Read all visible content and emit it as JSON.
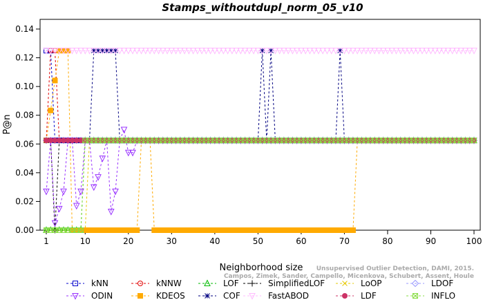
{
  "chart_data": {
    "type": "line",
    "title": "Stamps_withoutdupl_norm_05_v10",
    "xlabel": "Neighborhood size",
    "ylabel": "P@n",
    "xlim": [
      1,
      100
    ],
    "ylim": [
      0,
      0.14
    ],
    "x_ticks": [
      1,
      10,
      20,
      30,
      40,
      50,
      60,
      70,
      80,
      90,
      100
    ],
    "y_ticks": [
      "0.00",
      "0.02",
      "0.04",
      "0.06",
      "0.08",
      "0.10",
      "0.12",
      "0.14"
    ],
    "legend_position": "bottom",
    "series": [
      {
        "name": "kNN",
        "color": "#0000cc",
        "marker": "square",
        "points": [
          [
            1,
            0.125
          ],
          [
            2,
            0.125
          ],
          [
            3,
            0.0625
          ],
          [
            100,
            0.0625
          ]
        ]
      },
      {
        "name": "kNNW",
        "color": "#e00000",
        "marker": "circle",
        "points": [
          [
            1,
            0.0625
          ],
          [
            2,
            0.125
          ],
          [
            3,
            0.125
          ],
          [
            4,
            0.0625
          ],
          [
            100,
            0.0625
          ]
        ]
      },
      {
        "name": "LOF",
        "color": "#00bb00",
        "marker": "triangle-up",
        "points": [
          [
            1,
            0
          ],
          [
            8,
            0
          ],
          [
            9,
            0
          ],
          [
            10,
            0.0625
          ],
          [
            100,
            0.0625
          ]
        ]
      },
      {
        "name": "SimplifiedLOF",
        "color": "#000000",
        "marker": "plus",
        "points": [
          [
            1,
            0.0625
          ],
          [
            2,
            0.0625
          ],
          [
            3,
            0
          ],
          [
            4,
            0.0625
          ],
          [
            100,
            0.0625
          ]
        ]
      },
      {
        "name": "LoOP",
        "color": "#e6c800",
        "marker": "x",
        "points": [
          [
            1,
            0
          ],
          [
            10,
            0
          ],
          [
            11,
            0.0625
          ],
          [
            100,
            0.0625
          ]
        ]
      },
      {
        "name": "LDOF",
        "color": "#9999ff",
        "marker": "diamond",
        "points": [
          [
            1,
            0.0625
          ],
          [
            100,
            0.0625
          ]
        ]
      },
      {
        "name": "ODIN",
        "color": "#9933ff",
        "marker": "triangle-down",
        "points": [
          [
            1,
            0.027
          ],
          [
            2,
            0.0625
          ],
          [
            3,
            0.005
          ],
          [
            4,
            0.015
          ],
          [
            5,
            0.027
          ],
          [
            6,
            0.0625
          ],
          [
            7,
            0.0625
          ],
          [
            8,
            0.017
          ],
          [
            9,
            0.027
          ],
          [
            10,
            0.0625
          ],
          [
            11,
            0.0625
          ],
          [
            12,
            0.03
          ],
          [
            13,
            0.037
          ],
          [
            14,
            0.05
          ],
          [
            15,
            0.0625
          ],
          [
            16,
            0.013
          ],
          [
            17,
            0.027
          ],
          [
            18,
            0.0625
          ],
          [
            19,
            0.07
          ],
          [
            20,
            0.054
          ],
          [
            21,
            0.054
          ],
          [
            22,
            0.0625
          ],
          [
            100,
            0.0625
          ]
        ]
      },
      {
        "name": "KDEOS",
        "color": "#ffaa00",
        "marker": "square-filled",
        "points": [
          [
            1,
            0.0625
          ],
          [
            4,
            0.125
          ],
          [
            5,
            0.125
          ],
          [
            6,
            0.125
          ],
          [
            7,
            0
          ],
          [
            20,
            0
          ],
          [
            21,
            0
          ],
          [
            22,
            0
          ],
          [
            23,
            0.0625
          ],
          [
            24,
            0.0625
          ],
          [
            25,
            0.0625
          ],
          [
            26,
            0
          ],
          [
            70,
            0
          ],
          [
            71,
            0
          ],
          [
            72,
            0
          ],
          [
            73,
            0.0625
          ],
          [
            100,
            0.0625
          ]
        ]
      },
      {
        "name": "COF",
        "color": "#000080",
        "marker": "star",
        "points": [
          [
            1,
            0.0625
          ],
          [
            11,
            0.0625
          ],
          [
            12,
            0.125
          ],
          [
            13,
            0.125
          ],
          [
            14,
            0.125
          ],
          [
            15,
            0.125
          ],
          [
            16,
            0.125
          ],
          [
            17,
            0.125
          ],
          [
            18,
            0.0625
          ],
          [
            50,
            0.0625
          ],
          [
            51,
            0.125
          ],
          [
            52,
            0.0625
          ],
          [
            53,
            0.125
          ],
          [
            54,
            0.0625
          ],
          [
            68,
            0.0625
          ],
          [
            69,
            0.125
          ],
          [
            70,
            0.0625
          ],
          [
            100,
            0.0625
          ]
        ]
      },
      {
        "name": "FastABOD",
        "color": "#ffbbff",
        "marker": "triangle-down",
        "points": [
          [
            1,
            0.125
          ],
          [
            100,
            0.125
          ]
        ]
      },
      {
        "name": "LDF",
        "color": "#cc3366",
        "marker": "circle-filled",
        "points": [
          [
            1,
            0.0625
          ],
          [
            100,
            0.0625
          ]
        ]
      },
      {
        "name": "INFLO",
        "color": "#88dd44",
        "marker": "square-x",
        "points": [
          [
            1,
            0
          ],
          [
            9,
            0
          ],
          [
            10,
            0.0625
          ],
          [
            100,
            0.0625
          ]
        ]
      }
    ],
    "watermark": [
      "Unsupervised Outlier Detection, DAMI, 2015.",
      "Campos, Zimek, Sander, Campello, Micenkova, Schubert, Assent, Houle"
    ]
  }
}
